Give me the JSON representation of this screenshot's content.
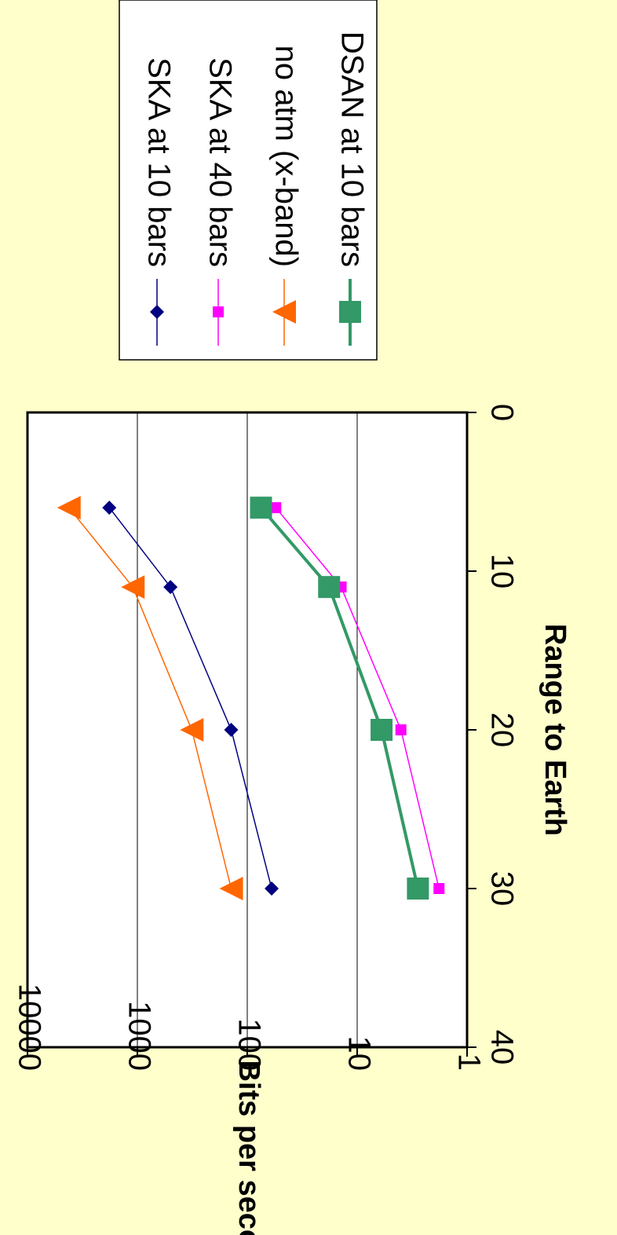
{
  "chart_data": {
    "type": "line",
    "xlabel": "Range to Earth",
    "ylabel": "Bits per second",
    "xlim": [
      0,
      40
    ],
    "ylim": [
      1,
      10000
    ],
    "y_scale": "log",
    "x_ticks": [
      "0",
      "10",
      "20",
      "30",
      "40"
    ],
    "y_ticks": [
      "1",
      "10",
      "100",
      "1000",
      "10000"
    ],
    "grid": "horizontal major gridlines",
    "legend_position": "right",
    "orientation": "rotated 90 degrees clockwise",
    "series": [
      {
        "name": "SKA at 10 bars",
        "color": "#000080",
        "marker": "diamond",
        "x": [
          6,
          11,
          20,
          30
        ],
        "y": [
          1800,
          500,
          140,
          60
        ]
      },
      {
        "name": "SKA at 40 bars",
        "color": "#FF00FF",
        "marker": "square",
        "x": [
          6,
          11,
          20,
          30
        ],
        "y": [
          55,
          14,
          4,
          1.8
        ]
      },
      {
        "name": "no atm (x-band)",
        "color": "#FF6600",
        "marker": "triangle",
        "x": [
          6,
          11,
          20,
          30
        ],
        "y": [
          4200,
          1100,
          320,
          140
        ]
      },
      {
        "name": "DSAN at 10 bars",
        "color": "#339966",
        "marker": "big-square",
        "x": [
          6,
          11,
          20,
          30
        ],
        "y": [
          75,
          18,
          6,
          2.8
        ]
      }
    ]
  }
}
